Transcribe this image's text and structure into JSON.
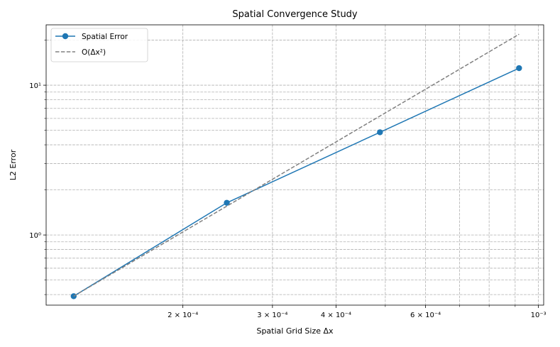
{
  "chart_data": {
    "type": "line",
    "title": "Spatial Convergence Study",
    "xlabel": "Spatial Grid Size Δx",
    "ylabel": "L2 Error",
    "xscale": "log",
    "yscale": "log",
    "xlim": [
      0.0001077,
      0.001024
    ],
    "ylim": [
      0.34,
      25.3
    ],
    "grid": true,
    "grid_style": "dashed",
    "legend_position": "top-left",
    "x_major_ticks": [
      {
        "value": 0.0002,
        "label": "2 × 10⁻⁴"
      },
      {
        "value": 0.0003,
        "label": "3 × 10⁻⁴"
      },
      {
        "value": 0.0004,
        "label": "4 × 10⁻⁴"
      },
      {
        "value": 0.0006,
        "label": "6 × 10⁻⁴"
      },
      {
        "value": 0.001,
        "label": "10⁻³"
      }
    ],
    "x_minor_ticks": [
      0.0005,
      0.0007,
      0.0008,
      0.0009
    ],
    "y_major_ticks": [
      {
        "value": 1,
        "label": "10⁰"
      },
      {
        "value": 10,
        "label": "10¹"
      }
    ],
    "y_minor_grid": [
      0.4,
      0.5,
      0.6,
      0.7,
      0.8,
      0.9,
      2,
      3,
      4,
      5,
      6,
      7,
      8,
      9,
      20
    ],
    "series": [
      {
        "name": "Spatial Error",
        "color": "#1f77b4",
        "style": "solid",
        "marker": "circle",
        "x": [
          0.000122,
          0.000244,
          0.000488,
          0.000916
        ],
        "y": [
          0.39,
          1.64,
          4.85,
          13.0
        ]
      },
      {
        "name": "O(Δx²)",
        "color": "#808080",
        "style": "dashed",
        "marker": "none",
        "x": [
          0.000122,
          0.000916
        ],
        "y": [
          0.39,
          21.9
        ]
      }
    ]
  }
}
